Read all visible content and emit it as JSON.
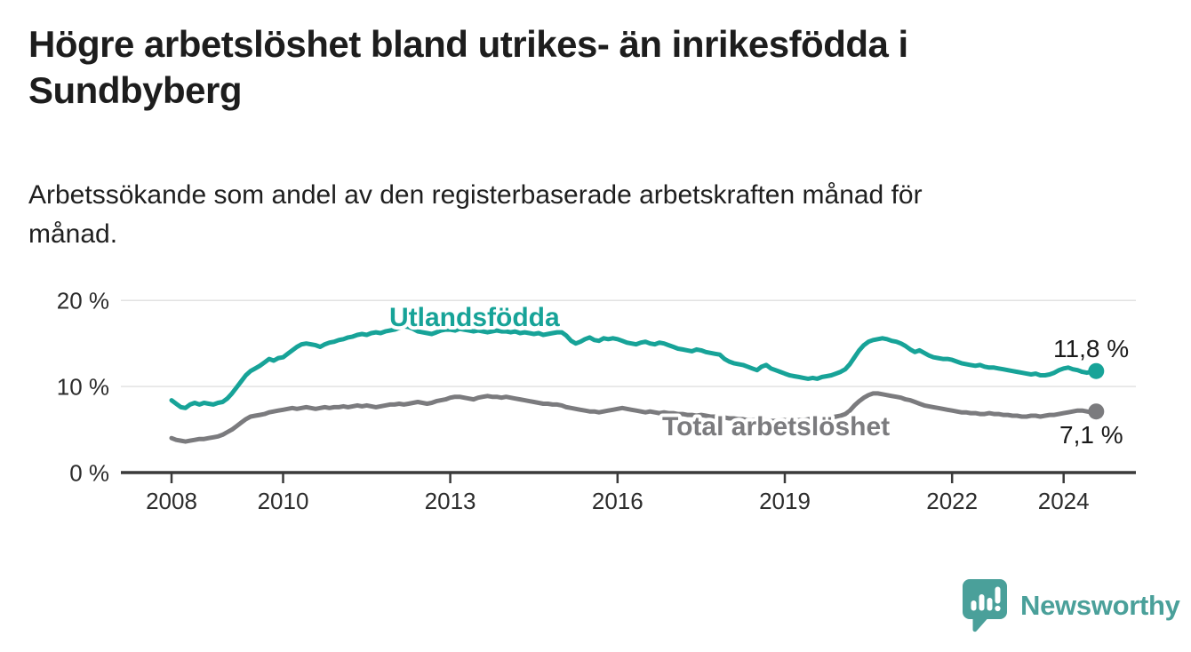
{
  "header": {
    "title_lines": [
      "Högre arbetslöshet bland utrikes- än inrikesfödda i",
      "Sundbyberg"
    ],
    "subtitle_lines": [
      "Arbetssökande som andel av den registerbaserade arbetskraften månad för",
      "månad."
    ]
  },
  "chart_data": {
    "type": "line",
    "unit": "% av registerbaserad arbetskraft",
    "x_start_year": 2008,
    "x_start_month": 1,
    "points_per_year": 12,
    "x_tick_labels": [
      "2008",
      "2010",
      "2013",
      "2016",
      "2019",
      "2022",
      "2024"
    ],
    "x_tick_years": [
      2008,
      2010,
      2013,
      2016,
      2019,
      2022,
      2024
    ],
    "y_ticks": [
      {
        "value": 0,
        "label": "0 %"
      },
      {
        "value": 10,
        "label": "10 %"
      },
      {
        "value": 20,
        "label": "20 %"
      }
    ],
    "gridlines": [
      10,
      20
    ],
    "ylim": [
      0,
      21.5
    ],
    "grid": "horizontal",
    "legend_position": "inline-labels",
    "series": [
      {
        "name": "Utlandsfödda",
        "color": "#17a398",
        "end_label": "11,8 %",
        "end_value": 11.8,
        "values": [
          8.4,
          8.0,
          7.6,
          7.5,
          7.9,
          8.1,
          7.9,
          8.1,
          8.0,
          7.9,
          8.1,
          8.2,
          8.6,
          9.2,
          9.9,
          10.6,
          11.3,
          11.8,
          12.1,
          12.4,
          12.8,
          13.2,
          13.0,
          13.3,
          13.4,
          13.8,
          14.2,
          14.6,
          14.9,
          15.0,
          14.9,
          14.8,
          14.6,
          14.9,
          15.1,
          15.2,
          15.4,
          15.5,
          15.7,
          15.8,
          16.0,
          16.1,
          16.0,
          16.2,
          16.3,
          16.2,
          16.4,
          16.5,
          16.6,
          16.8,
          17.0,
          16.9,
          16.7,
          16.4,
          16.3,
          16.2,
          16.1,
          16.3,
          16.5,
          16.6,
          16.6,
          16.5,
          16.7,
          16.6,
          16.5,
          16.4,
          16.5,
          16.4,
          16.3,
          16.4,
          16.5,
          16.4,
          16.4,
          16.3,
          16.4,
          16.2,
          16.3,
          16.2,
          16.1,
          16.2,
          16.0,
          16.1,
          16.2,
          16.3,
          16.3,
          15.9,
          15.3,
          15.0,
          15.2,
          15.5,
          15.7,
          15.4,
          15.3,
          15.6,
          15.5,
          15.6,
          15.5,
          15.3,
          15.1,
          15.0,
          14.9,
          15.1,
          15.2,
          15.0,
          14.9,
          15.1,
          15.0,
          14.8,
          14.6,
          14.4,
          14.3,
          14.2,
          14.1,
          14.3,
          14.2,
          14.0,
          13.9,
          13.8,
          13.7,
          13.2,
          12.9,
          12.7,
          12.6,
          12.5,
          12.3,
          12.1,
          11.9,
          12.3,
          12.5,
          12.1,
          11.9,
          11.7,
          11.5,
          11.3,
          11.2,
          11.1,
          11.0,
          10.9,
          11.0,
          10.9,
          11.1,
          11.2,
          11.3,
          11.5,
          11.7,
          12.0,
          12.6,
          13.4,
          14.2,
          14.8,
          15.2,
          15.4,
          15.5,
          15.6,
          15.5,
          15.3,
          15.2,
          15.0,
          14.7,
          14.3,
          14.0,
          14.2,
          13.9,
          13.6,
          13.4,
          13.3,
          13.2,
          13.2,
          13.1,
          12.9,
          12.7,
          12.6,
          12.5,
          12.4,
          12.5,
          12.3,
          12.2,
          12.2,
          12.1,
          12.0,
          11.9,
          11.8,
          11.7,
          11.6,
          11.5,
          11.4,
          11.5,
          11.3,
          11.3,
          11.4,
          11.6,
          11.9,
          12.1,
          12.2,
          12.0,
          11.9,
          11.7,
          11.6,
          11.7,
          11.8
        ]
      },
      {
        "name": "Total arbetslöshet",
        "color": "#7b7b7e",
        "end_label": "7,1 %",
        "end_value": 7.1,
        "values": [
          4.0,
          3.8,
          3.7,
          3.6,
          3.7,
          3.8,
          3.9,
          3.9,
          4.0,
          4.1,
          4.2,
          4.4,
          4.7,
          5.0,
          5.4,
          5.8,
          6.2,
          6.5,
          6.6,
          6.7,
          6.8,
          7.0,
          7.1,
          7.2,
          7.3,
          7.4,
          7.5,
          7.4,
          7.5,
          7.6,
          7.5,
          7.4,
          7.5,
          7.6,
          7.5,
          7.6,
          7.6,
          7.7,
          7.6,
          7.7,
          7.8,
          7.7,
          7.8,
          7.7,
          7.6,
          7.7,
          7.8,
          7.9,
          7.9,
          8.0,
          7.9,
          8.0,
          8.1,
          8.2,
          8.1,
          8.0,
          8.1,
          8.3,
          8.4,
          8.5,
          8.7,
          8.8,
          8.8,
          8.7,
          8.6,
          8.5,
          8.7,
          8.8,
          8.9,
          8.8,
          8.8,
          8.7,
          8.8,
          8.7,
          8.6,
          8.5,
          8.4,
          8.3,
          8.2,
          8.1,
          8.0,
          8.0,
          7.9,
          7.9,
          7.8,
          7.6,
          7.5,
          7.4,
          7.3,
          7.2,
          7.1,
          7.1,
          7.0,
          7.1,
          7.2,
          7.3,
          7.4,
          7.5,
          7.4,
          7.3,
          7.2,
          7.1,
          7.0,
          7.1,
          7.0,
          6.9,
          7.0,
          6.9,
          6.9,
          6.8,
          6.8,
          6.7,
          6.7,
          6.6,
          6.7,
          6.6,
          6.5,
          6.5,
          6.4,
          6.4,
          6.3,
          6.3,
          6.2,
          6.2,
          6.1,
          6.1,
          6.2,
          6.1,
          6.1,
          6.0,
          6.0,
          6.1,
          6.1,
          6.0,
          6.0,
          6.1,
          6.1,
          6.2,
          6.2,
          6.3,
          6.3,
          6.4,
          6.4,
          6.5,
          6.6,
          6.8,
          7.2,
          7.8,
          8.3,
          8.7,
          9.0,
          9.2,
          9.2,
          9.1,
          9.0,
          8.9,
          8.8,
          8.7,
          8.5,
          8.4,
          8.2,
          8.0,
          7.8,
          7.7,
          7.6,
          7.5,
          7.4,
          7.3,
          7.2,
          7.1,
          7.0,
          7.0,
          6.9,
          6.9,
          6.8,
          6.8,
          6.9,
          6.8,
          6.8,
          6.7,
          6.7,
          6.6,
          6.6,
          6.5,
          6.5,
          6.6,
          6.6,
          6.5,
          6.6,
          6.7,
          6.7,
          6.8,
          6.9,
          7.0,
          7.1,
          7.2,
          7.2,
          7.1,
          7.0,
          7.1
        ]
      }
    ]
  },
  "footer": {
    "brand": "Newsworthy",
    "brand_color": "#4aa09a",
    "logo_icon": "newsworthy-bubble-chart-icon"
  }
}
